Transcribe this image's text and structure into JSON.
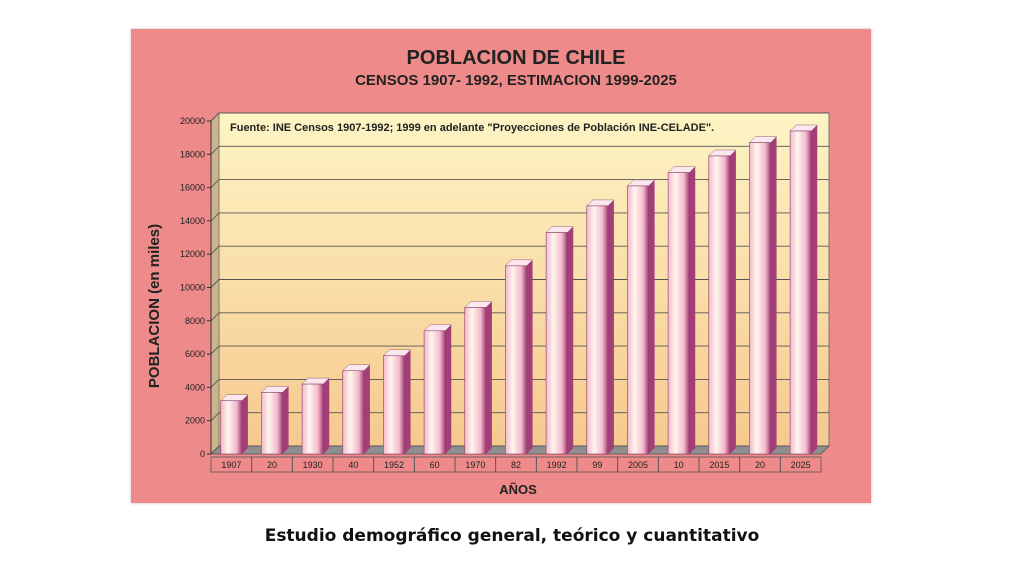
{
  "slide": {
    "caption": "Estudio demográfico general, teórico y cuantitativo"
  },
  "chart_data": {
    "type": "bar",
    "title": "POBLACION DE CHILE",
    "subtitle": "CENSOS 1907- 1992, ESTIMACION 1999-2025",
    "source_note": "Fuente: INE Censos 1907-1992; 1999 en adelante \"Proyecciones de Población INE-CELADE\".",
    "xlabel": "AÑOS",
    "ylabel": "POBLACION (en miles)",
    "categories": [
      "1907",
      "20",
      "1930",
      "40",
      "1952",
      "60",
      "1970",
      "82",
      "1992",
      "99",
      "2005",
      "10",
      "2015",
      "20",
      "2025"
    ],
    "values": [
      3200,
      3700,
      4200,
      5000,
      5900,
      7400,
      8800,
      11300,
      13300,
      14900,
      16100,
      16900,
      17900,
      18700,
      19400
    ],
    "yticks": [
      "0",
      "2000",
      "4000",
      "6000",
      "8000",
      "10000",
      "12000",
      "14000",
      "16000",
      "18000",
      "20000"
    ],
    "ylim": [
      0,
      20000
    ],
    "grid": true,
    "colors": {
      "frame": "#ee8a8a",
      "plot_top": "#fdf4c4",
      "plot_bottom": "#f6c98e",
      "bar_light": "#fff6ee",
      "bar_mid": "#f3b9cc",
      "bar_dark": "#a33e78"
    }
  }
}
